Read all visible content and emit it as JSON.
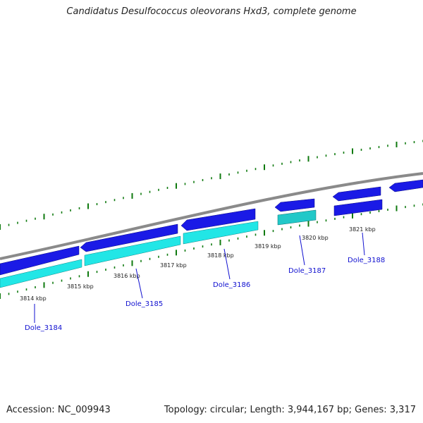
{
  "title": "Candidatus Desulfococcus oleovorans Hxd3, complete genome",
  "footer": {
    "accession": "Accession: NC_009943",
    "topology": "Topology: circular; Length: 3,944,167 bp; Genes: 3,317"
  },
  "colors": {
    "backbone": "#8a8a8a",
    "forward_gene": "#1a1ae6",
    "reverse_gene": "#22e6e6",
    "ticks": "#0f7a0f",
    "gene_label": "#1010d0"
  },
  "kbp_labels": [
    "3814 kbp",
    "3815 kbp",
    "3816 kbp",
    "3817 kbp",
    "3818 kbp",
    "3819 kbp",
    "3820 kbp",
    "3821 kbp"
  ],
  "gene_labels": [
    "Dole_3184",
    "Dole_3185",
    "Dole_3186",
    "Dole_3187",
    "Dole_3188"
  ]
}
